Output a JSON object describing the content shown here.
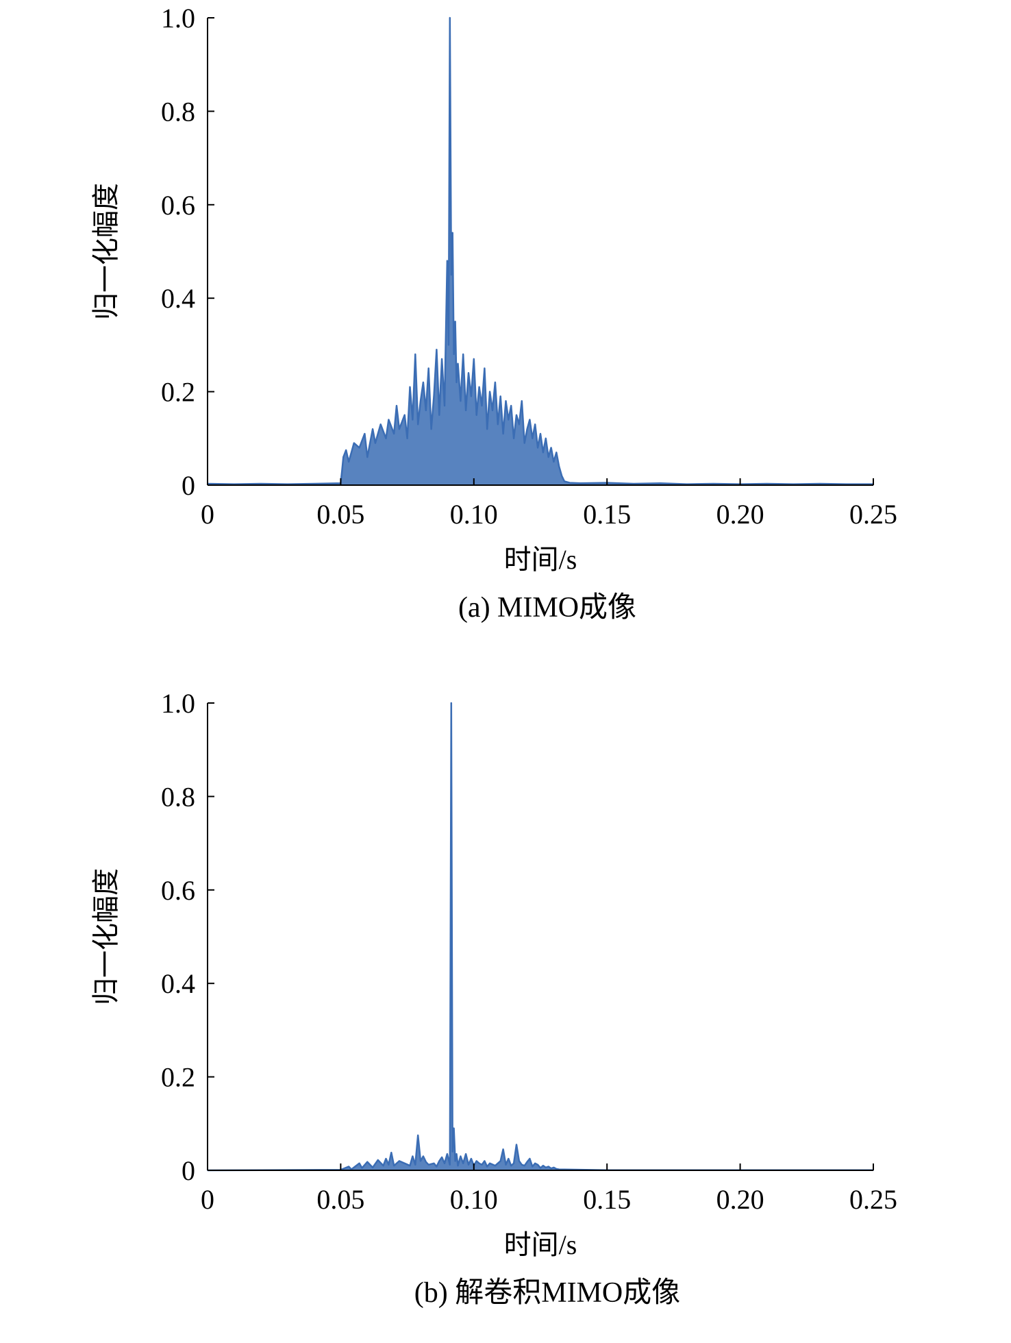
{
  "chart_data": [
    {
      "type": "line",
      "caption": "(a) MIMO成像",
      "xlabel": "时间/s",
      "ylabel": "归一化幅度",
      "xlim": [
        0,
        0.25
      ],
      "ylim": [
        0,
        1.0
      ],
      "xticks": [
        0,
        0.05,
        0.1,
        0.15,
        0.2,
        0.25
      ],
      "xtick_labels": [
        "0",
        "0.05",
        "0.10",
        "0.15",
        "0.20",
        "0.25"
      ],
      "yticks": [
        0,
        0.2,
        0.4,
        0.6,
        0.8,
        1.0
      ],
      "ytick_labels": [
        "0",
        "0.2",
        "0.4",
        "0.6",
        "0.8",
        "1.0"
      ],
      "grid": false,
      "series": [
        {
          "color": "#3b6db4",
          "x": [
            0,
            0.01,
            0.02,
            0.03,
            0.04,
            0.05,
            0.0505,
            0.051,
            0.052,
            0.053,
            0.054,
            0.055,
            0.057,
            0.059,
            0.06,
            0.062,
            0.063,
            0.065,
            0.067,
            0.068,
            0.07,
            0.071,
            0.072,
            0.074,
            0.075,
            0.076,
            0.077,
            0.078,
            0.079,
            0.08,
            0.081,
            0.082,
            0.083,
            0.084,
            0.085,
            0.086,
            0.087,
            0.088,
            0.089,
            0.09,
            0.0905,
            0.091,
            0.0915,
            0.092,
            0.0925,
            0.093,
            0.0935,
            0.094,
            0.095,
            0.096,
            0.097,
            0.098,
            0.099,
            0.1,
            0.101,
            0.102,
            0.103,
            0.104,
            0.105,
            0.106,
            0.107,
            0.108,
            0.109,
            0.11,
            0.111,
            0.112,
            0.113,
            0.114,
            0.115,
            0.116,
            0.117,
            0.118,
            0.119,
            0.12,
            0.121,
            0.122,
            0.123,
            0.124,
            0.125,
            0.126,
            0.127,
            0.128,
            0.129,
            0.13,
            0.131,
            0.132,
            0.133,
            0.134,
            0.136,
            0.14,
            0.15,
            0.16,
            0.17,
            0.18,
            0.19,
            0.2,
            0.21,
            0.22,
            0.23,
            0.24,
            0.25
          ],
          "y": [
            0.003,
            0.002,
            0.003,
            0.002,
            0.003,
            0.004,
            0.03,
            0.06,
            0.075,
            0.05,
            0.07,
            0.09,
            0.08,
            0.11,
            0.06,
            0.12,
            0.09,
            0.13,
            0.1,
            0.14,
            0.11,
            0.17,
            0.12,
            0.15,
            0.1,
            0.21,
            0.14,
            0.28,
            0.13,
            0.18,
            0.22,
            0.16,
            0.25,
            0.12,
            0.19,
            0.29,
            0.15,
            0.27,
            0.17,
            0.48,
            0.3,
            1.0,
            0.45,
            0.54,
            0.28,
            0.35,
            0.22,
            0.26,
            0.18,
            0.28,
            0.16,
            0.24,
            0.19,
            0.27,
            0.15,
            0.21,
            0.17,
            0.25,
            0.12,
            0.2,
            0.16,
            0.22,
            0.13,
            0.19,
            0.11,
            0.18,
            0.14,
            0.17,
            0.1,
            0.15,
            0.13,
            0.18,
            0.09,
            0.12,
            0.14,
            0.1,
            0.13,
            0.08,
            0.11,
            0.07,
            0.1,
            0.06,
            0.08,
            0.05,
            0.07,
            0.04,
            0.02,
            0.008,
            0.005,
            0.004,
            0.005,
            0.003,
            0.004,
            0.002,
            0.003,
            0.002,
            0.003,
            0.002,
            0.003,
            0.002,
            0.002
          ]
        }
      ]
    },
    {
      "type": "line",
      "caption": "(b) 解卷积MIMO成像",
      "xlabel": "时间/s",
      "ylabel": "归一化幅度",
      "xlim": [
        0,
        0.25
      ],
      "ylim": [
        0,
        1.0
      ],
      "xticks": [
        0,
        0.05,
        0.1,
        0.15,
        0.2,
        0.25
      ],
      "xtick_labels": [
        "0",
        "0.05",
        "0.10",
        "0.15",
        "0.20",
        "0.25"
      ],
      "yticks": [
        0,
        0.2,
        0.4,
        0.6,
        0.8,
        1.0
      ],
      "ytick_labels": [
        "0",
        "0.2",
        "0.4",
        "0.6",
        "0.8",
        "1.0"
      ],
      "grid": false,
      "series": [
        {
          "color": "#3b6db4",
          "x": [
            0,
            0.05,
            0.053,
            0.054,
            0.057,
            0.058,
            0.06,
            0.062,
            0.064,
            0.066,
            0.067,
            0.068,
            0.069,
            0.07,
            0.072,
            0.074,
            0.076,
            0.077,
            0.078,
            0.079,
            0.08,
            0.081,
            0.082,
            0.083,
            0.085,
            0.086,
            0.087,
            0.088,
            0.089,
            0.09,
            0.091,
            0.0915,
            0.092,
            0.0925,
            0.093,
            0.0935,
            0.094,
            0.095,
            0.096,
            0.097,
            0.098,
            0.099,
            0.1,
            0.101,
            0.102,
            0.103,
            0.104,
            0.105,
            0.106,
            0.108,
            0.11,
            0.111,
            0.112,
            0.113,
            0.114,
            0.115,
            0.116,
            0.117,
            0.118,
            0.119,
            0.12,
            0.121,
            0.122,
            0.123,
            0.124,
            0.125,
            0.126,
            0.127,
            0.128,
            0.129,
            0.13,
            0.131,
            0.132,
            0.15,
            0.2,
            0.25
          ],
          "y": [
            0,
            0.001,
            0.008,
            0.002,
            0.015,
            0.005,
            0.018,
            0.006,
            0.022,
            0.01,
            0.025,
            0.012,
            0.038,
            0.01,
            0.02,
            0.015,
            0.01,
            0.03,
            0.012,
            0.075,
            0.02,
            0.03,
            0.018,
            0.012,
            0.015,
            0.008,
            0.02,
            0.028,
            0.015,
            0.035,
            0.012,
            1.0,
            0.04,
            0.09,
            0.02,
            0.035,
            0.01,
            0.03,
            0.015,
            0.035,
            0.012,
            0.025,
            0.01,
            0.02,
            0.015,
            0.012,
            0.02,
            0.008,
            0.015,
            0.01,
            0.02,
            0.045,
            0.012,
            0.025,
            0.01,
            0.015,
            0.055,
            0.02,
            0.012,
            0.01,
            0.018,
            0.025,
            0.008,
            0.015,
            0.012,
            0.005,
            0.01,
            0.006,
            0.008,
            0.004,
            0.006,
            0.003,
            0.002,
            0.0005,
            0.0005,
            0.0005
          ]
        }
      ]
    }
  ]
}
